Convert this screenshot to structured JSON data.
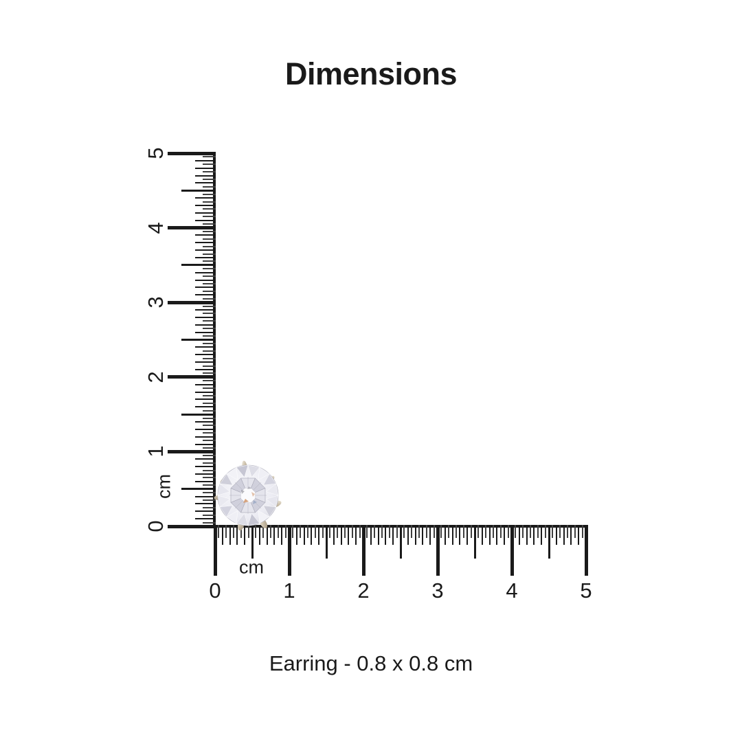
{
  "title": "Dimensions",
  "caption": "Earring - 0.8 x 0.8 cm",
  "measurement": {
    "item": "Earring",
    "width_cm": 0.8,
    "height_cm": 0.8,
    "unit": "cm"
  },
  "colors": {
    "background": "#ffffff",
    "ink": "#1a1a1a",
    "tick_minor": "#3f3f3f",
    "metal": "#cbbfa9",
    "gem": "#ededf3",
    "gem_accent": "#cf9468"
  },
  "rulers": {
    "unit_label": "cm",
    "min": 0,
    "max": 5,
    "step": 0.05,
    "integer_labels": [
      "0",
      "1",
      "2",
      "3",
      "4",
      "5"
    ]
  }
}
